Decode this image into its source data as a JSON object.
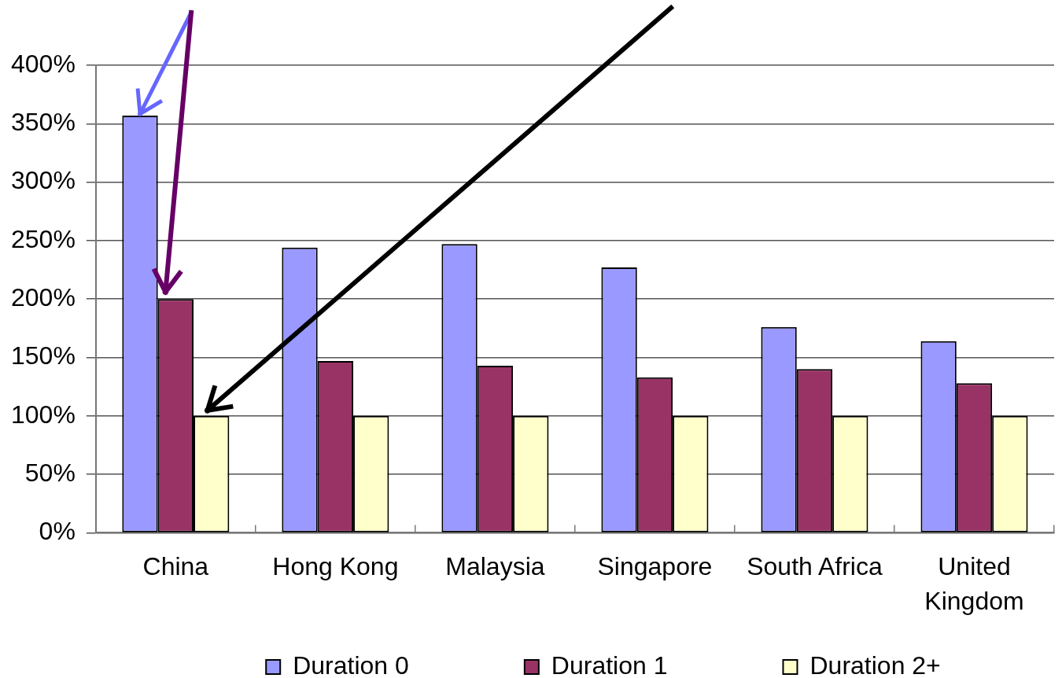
{
  "chart_data": {
    "type": "bar",
    "categories": [
      "China",
      "Hong Kong",
      "Malaysia",
      "Singapore",
      "South Africa",
      "United Kingdom"
    ],
    "series": [
      {
        "name": "Duration 0",
        "color": "#9999ff",
        "values": [
          357,
          244,
          247,
          227,
          176,
          164
        ]
      },
      {
        "name": "Duration 1",
        "color": "#993366",
        "values": [
          200,
          147,
          143,
          133,
          140,
          128
        ]
      },
      {
        "name": "Duration 2+",
        "color": "#ffffcc",
        "values": [
          100,
          100,
          100,
          100,
          100,
          100
        ]
      }
    ],
    "ylim": [
      0,
      400
    ],
    "yticks": [
      {
        "value": 0,
        "label": "0%"
      },
      {
        "value": 50,
        "label": "50%"
      },
      {
        "value": 100,
        "label": "100%"
      },
      {
        "value": 150,
        "label": "150%"
      },
      {
        "value": 200,
        "label": "200%"
      },
      {
        "value": 250,
        "label": "250%"
      },
      {
        "value": 300,
        "label": "300%"
      },
      {
        "value": 350,
        "label": "350%"
      },
      {
        "value": 400,
        "label": "400%"
      }
    ],
    "grid": "y",
    "legend": "bottom"
  }
}
